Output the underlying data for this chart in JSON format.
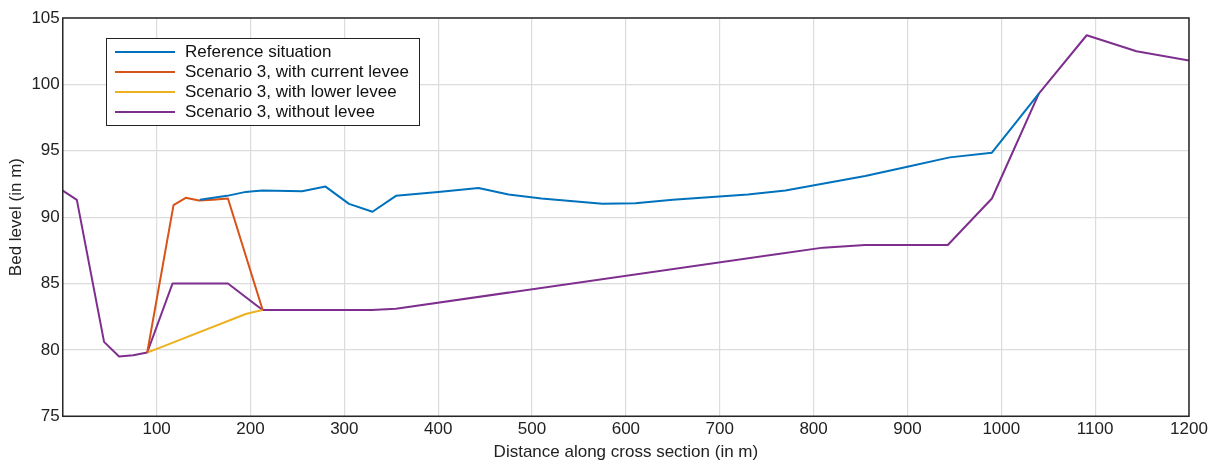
{
  "chart_data": {
    "type": "line",
    "xlabel": "Distance along cross section (in m)",
    "ylabel": "Bed level (in m)",
    "xlim": [
      0,
      1200
    ],
    "xticks": [
      100,
      200,
      300,
      400,
      500,
      600,
      700,
      800,
      900,
      1000,
      1100,
      1200
    ],
    "ylim": [
      75,
      105
    ],
    "yticks": [
      75,
      80,
      85,
      90,
      95,
      100,
      105
    ],
    "grid": true,
    "legend": "top left",
    "marker": "none",
    "line_style": "solid",
    "series": [
      {
        "name": "Reference situation",
        "color": "#0072bd",
        "x": [
          146,
          175,
          195,
          213,
          255,
          280,
          305,
          330,
          355,
          400,
          443,
          475,
          510,
          575,
          610,
          650,
          730,
          770,
          855,
          900,
          945,
          990,
          1040
        ],
        "values": [
          91.3,
          91.6,
          91.9,
          92.0,
          91.95,
          92.3,
          91.0,
          90.4,
          91.6,
          91.9,
          92.2,
          91.7,
          91.4,
          91.0,
          91.05,
          91.3,
          91.7,
          92.0,
          93.1,
          93.8,
          94.5,
          94.85,
          99.3
        ]
      },
      {
        "name": "Scenario 3, with current levee",
        "color": "#d95319",
        "x": [
          90,
          118,
          131,
          145,
          160,
          176,
          213
        ],
        "values": [
          79.8,
          90.9,
          91.45,
          91.25,
          91.3,
          91.4,
          83.0
        ]
      },
      {
        "name": "Scenario 3, with lower levee",
        "color": "#edb120",
        "x": [
          90,
          105,
          195,
          213
        ],
        "values": [
          79.8,
          80.2,
          82.7,
          83.0
        ]
      },
      {
        "name": "Scenario 3, without levee",
        "color": "#7e2f8e",
        "x": [
          0,
          15,
          44,
          60,
          75,
          90,
          117,
          176,
          213,
          329,
          355,
          810,
          855,
          943,
          990,
          1040,
          1091,
          1144,
          1200
        ],
        "values": [
          92.0,
          91.3,
          80.6,
          79.5,
          79.6,
          79.8,
          85.0,
          85.0,
          83.0,
          83.0,
          83.1,
          87.7,
          87.9,
          87.9,
          91.4,
          99.3,
          103.7,
          102.5,
          101.8
        ]
      }
    ]
  }
}
